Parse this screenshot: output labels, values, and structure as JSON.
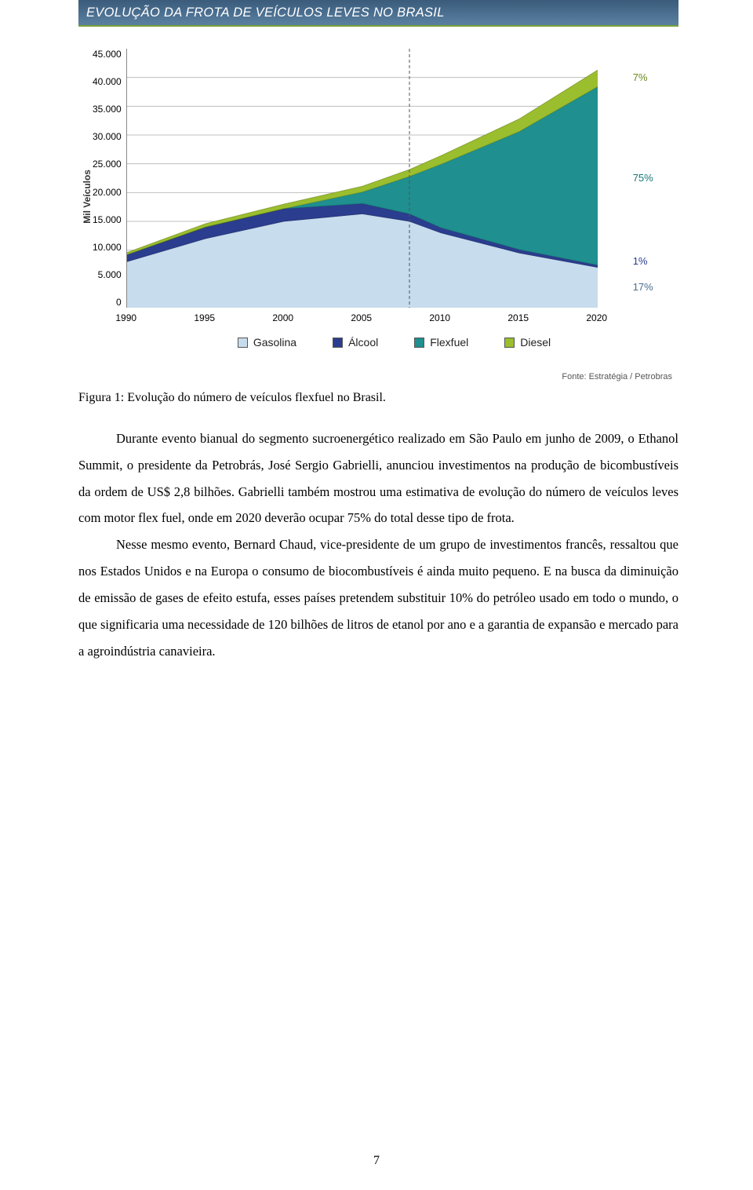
{
  "chart": {
    "title": "EVOLUÇÃO DA FROTA DE VEÍCULOS LEVES NO BRASIL",
    "title_bg_gradient": [
      "#3a5b7a",
      "#5a809f"
    ],
    "title_underline_color": "#7aa23a",
    "title_color": "#ffffff",
    "type": "area-stacked",
    "y_axis_title": "Mil Veículos",
    "y_ticks": [
      "45.000",
      "40.000",
      "35.000",
      "30.000",
      "25.000",
      "20.000",
      "15.000",
      "10.000",
      "5.000",
      "0"
    ],
    "ylim": [
      0,
      45000
    ],
    "x_ticks": [
      "1990",
      "1995",
      "2000",
      "2005",
      "2010",
      "2015",
      "2020"
    ],
    "xlim": [
      1990,
      2020
    ],
    "ref_line_year": 2008,
    "ref_line_color": "#555555",
    "grid_color": "#bfbfbf",
    "background_color": "#ffffff",
    "series": [
      {
        "name": "Gasolina",
        "color": "#c7dced",
        "points_thousand": [
          [
            1990,
            8.0
          ],
          [
            1995,
            12.0
          ],
          [
            2000,
            15.0
          ],
          [
            2005,
            16.3
          ],
          [
            2008,
            15.0
          ],
          [
            2010,
            13.0
          ],
          [
            2015,
            9.5
          ],
          [
            2020,
            7.0
          ]
        ]
      },
      {
        "name": "Álcool",
        "color": "#2b3d8f",
        "points_thousand": [
          [
            1990,
            1.2
          ],
          [
            1995,
            2.0
          ],
          [
            2000,
            2.2
          ],
          [
            2005,
            1.8
          ],
          [
            2008,
            1.3
          ],
          [
            2010,
            0.9
          ],
          [
            2015,
            0.6
          ],
          [
            2020,
            0.4
          ]
        ]
      },
      {
        "name": "Flexfuel",
        "color": "#1f8f8f",
        "points_thousand": [
          [
            1990,
            0
          ],
          [
            1995,
            0
          ],
          [
            2000,
            0
          ],
          [
            2005,
            2.0
          ],
          [
            2008,
            6.5
          ],
          [
            2010,
            11.0
          ],
          [
            2015,
            20.5
          ],
          [
            2020,
            31.0
          ]
        ]
      },
      {
        "name": "Diesel",
        "color": "#9bbe2e",
        "points_thousand": [
          [
            1990,
            0.4
          ],
          [
            1995,
            0.6
          ],
          [
            2000,
            0.8
          ],
          [
            2005,
            1.0
          ],
          [
            2008,
            1.2
          ],
          [
            2010,
            1.5
          ],
          [
            2015,
            2.2
          ],
          [
            2020,
            2.9
          ]
        ]
      }
    ],
    "end_labels": [
      {
        "text": "7%",
        "y_thousand": 40.0,
        "color": "#6a8a1f"
      },
      {
        "text": "75%",
        "y_thousand": 22.5,
        "color": "#167676"
      },
      {
        "text": "1%",
        "y_thousand": 8.0,
        "color": "#2b3d8f"
      },
      {
        "text": "17%",
        "y_thousand": 3.5,
        "color": "#4a6e8f"
      }
    ],
    "source": "Fonte: Estratégia / Petrobras"
  },
  "caption": "Figura 1: Evolução do número de veículos flexfuel no Brasil.",
  "paragraphs": [
    "Durante evento bianual do segmento sucroenergético realizado em São Paulo em junho de 2009, o Ethanol Summit, o presidente da Petrobrás, José Sergio Gabrielli, anunciou investimentos na produção de bicombustíveis da ordem de US$ 2,8 bilhões. Gabrielli também mostrou uma estimativa de evolução do número de veículos leves com motor flex fuel, onde em 2020 deverão ocupar 75% do total desse tipo de frota.",
    "Nesse mesmo evento, Bernard Chaud, vice-presidente de um grupo de investimentos francês, ressaltou que nos Estados Unidos e na Europa o consumo de biocombustíveis é ainda muito pequeno. E na busca da diminuição de emissão de gases de efeito estufa, esses países pretendem substituir 10% do petróleo usado em todo o mundo, o que significaria uma necessidade de 120 bilhões de litros de etanol por ano e a garantia de expansão e mercado para a agroindústria canavieira."
  ],
  "page_number": "7"
}
